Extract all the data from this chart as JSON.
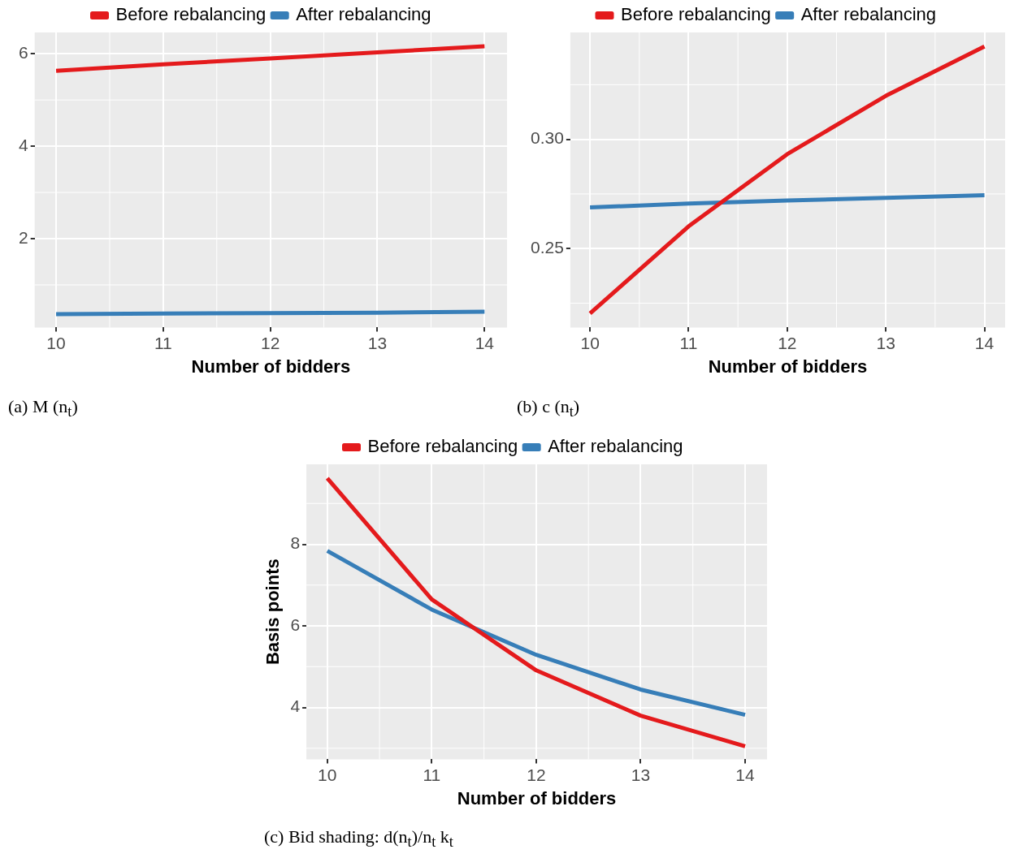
{
  "chart_data": [
    {
      "type": "line",
      "x": [
        10,
        11,
        12,
        13,
        14
      ],
      "series": [
        {
          "name": "Before rebalancing",
          "color": "#e41a1c",
          "values": [
            5.63,
            5.77,
            5.9,
            6.03,
            6.16
          ]
        },
        {
          "name": "After rebalancing",
          "color": "#377eb8",
          "values": [
            0.37,
            0.38,
            0.39,
            0.4,
            0.42
          ]
        }
      ],
      "xlabel": "Number of bidders",
      "xlim": [
        9.8,
        14.21
      ],
      "xticks": [
        10,
        11,
        12,
        13,
        14
      ],
      "ylim": [
        0.08,
        6.46
      ],
      "yticks": [
        2,
        4,
        6
      ],
      "grid": true,
      "legend": "top",
      "annotations": [
        "(a) M (n$_{t}$)"
      ]
    },
    {
      "type": "line",
      "x": [
        10,
        11,
        12,
        13,
        14
      ],
      "series": [
        {
          "name": "Before rebalancing",
          "color": "#e41a1c",
          "values": [
            0.2203,
            0.2602,
            0.2932,
            0.3199,
            0.3425
          ]
        },
        {
          "name": "After rebalancing",
          "color": "#377eb8",
          "values": [
            0.2688,
            0.2706,
            0.272,
            0.2732,
            0.2744
          ]
        }
      ],
      "xlabel": "Number of bidders",
      "xlim": [
        9.8,
        14.21
      ],
      "xticks": [
        10,
        11,
        12,
        13,
        14
      ],
      "ylim": [
        0.2139,
        0.3489
      ],
      "yticks": [
        {
          "value": 0.25,
          "label": "0.25"
        },
        {
          "value": 0.3,
          "label": "0.30"
        }
      ],
      "grid": true,
      "legend": "top",
      "annotations": [
        "(b) c (n$_{t}$)"
      ]
    },
    {
      "type": "line",
      "x": [
        10,
        11,
        12,
        13,
        14
      ],
      "series": [
        {
          "name": "Before rebalancing",
          "color": "#e41a1c",
          "values": [
            9.62,
            6.65,
            4.91,
            3.8,
            3.05
          ]
        },
        {
          "name": "After rebalancing",
          "color": "#377eb8",
          "values": [
            7.84,
            6.4,
            5.29,
            4.44,
            3.82
          ]
        }
      ],
      "xlabel": "Number of bidders",
      "ylabel": "Basis points",
      "xlim": [
        9.8,
        14.21
      ],
      "xticks": [
        10,
        11,
        12,
        13,
        14
      ],
      "ylim": [
        2.73,
        9.96
      ],
      "yticks": [
        4,
        6,
        8
      ],
      "grid": true,
      "legend": "top",
      "annotations": [
        "(c) Bid shading: d(n$_{t}$)/n$_{t}$ k$_{t}$"
      ]
    }
  ]
}
